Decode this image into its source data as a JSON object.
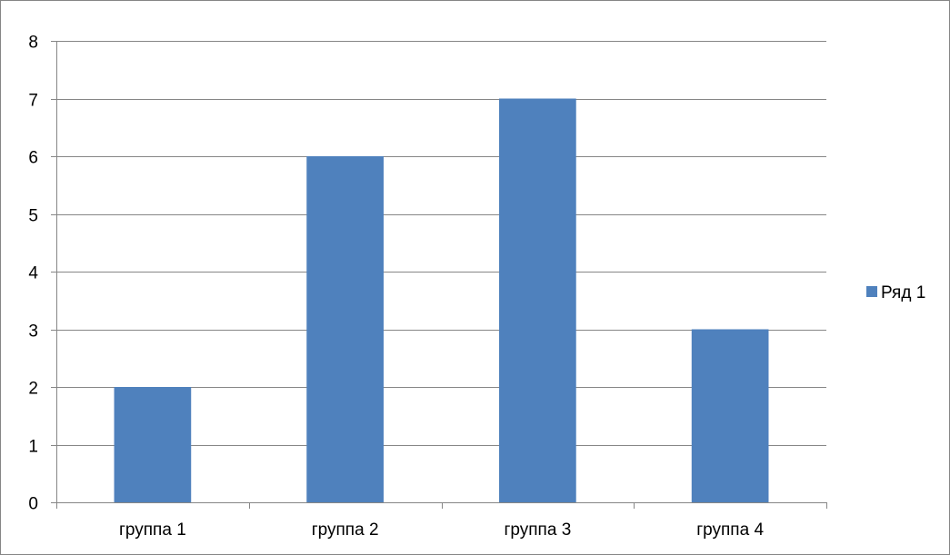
{
  "chart_data": {
    "type": "bar",
    "title": "",
    "xlabel": "",
    "ylabel": "",
    "categories": [
      "группа 1",
      "группа 2",
      "группа 3",
      "группа 4"
    ],
    "series": [
      {
        "name": "Ряд 1",
        "values": [
          2,
          6,
          7,
          3
        ],
        "color": "#4F81BD"
      }
    ],
    "ylim": [
      0,
      8
    ],
    "yticks": [
      0,
      1,
      2,
      3,
      4,
      5,
      6,
      7,
      8
    ],
    "grid": true,
    "legend_position": "right"
  }
}
